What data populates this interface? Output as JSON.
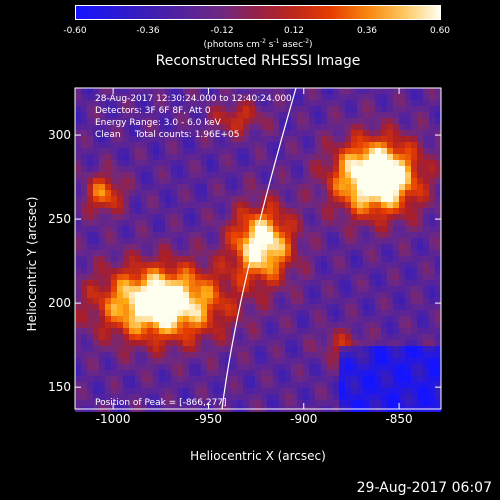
{
  "colorbar": {
    "ticks": [
      "-0.60",
      "-0.36",
      "-0.12",
      "0.12",
      "0.36",
      "0.60"
    ],
    "tick_values": [
      -0.6,
      -0.36,
      -0.12,
      0.12,
      0.36,
      0.6
    ],
    "units_prefix": "(photons cm",
    "units_exp1": "-2",
    "units_mid": " s",
    "units_exp2": "-1",
    "units_mid2": " asec",
    "units_exp3": "-2",
    "units_suffix": ")"
  },
  "title": "Reconstructed RHESSI Image",
  "info": {
    "time": "28-Aug-2017 12:30:24.000 to 12:40:24.000",
    "detectors": "Detectors: 3F 6F 8F, Att 0",
    "energy": "Energy Range: 3.0 - 6.0 keV",
    "method": "Clean     Total counts: 1.96E+05"
  },
  "peak": "Position of Peak = [-866,277]",
  "xaxis": {
    "label": "Heliocentric X (arcsec)",
    "ticks": [
      "-1000",
      "-950",
      "-900",
      "-850"
    ],
    "tick_values": [
      -1000,
      -950,
      -900,
      -850
    ],
    "range": [
      -1020,
      -828
    ]
  },
  "yaxis": {
    "label": "Heliocentric Y (arcsec)",
    "ticks": [
      "150",
      "200",
      "250",
      "300"
    ],
    "tick_values": [
      150,
      200,
      250,
      300
    ],
    "range": [
      137,
      328
    ]
  },
  "footer": "29-Aug-2017 06:07"
}
